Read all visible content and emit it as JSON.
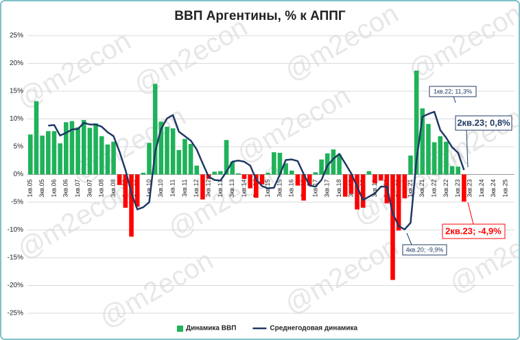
{
  "chart_data": {
    "type": "bar_line",
    "title": "ВВП Аргентины, % к АППГ",
    "watermark": "@m2econ",
    "categories": [
      "1кв.05",
      null,
      "3кв.05",
      null,
      "1кв.06",
      null,
      "3кв.06",
      null,
      "1кв.07",
      null,
      "3кв.07",
      null,
      "1кв.08",
      null,
      "3кв.08",
      null,
      "1кв.09",
      null,
      "3кв.09",
      null,
      "1кв.10",
      null,
      "3кв.10",
      null,
      "1кв.11",
      null,
      "3кв.11",
      null,
      "1кв.12",
      null,
      "3кв.12",
      null,
      "1кв.13",
      null,
      "3кв.13",
      null,
      "1кв.14",
      null,
      "3кв.14",
      null,
      "1кв.15",
      null,
      "3кв.15",
      null,
      "1кв.16",
      null,
      "3кв.16",
      null,
      "1кв.17",
      null,
      "3кв.17",
      null,
      "1кв.18",
      null,
      "3кв.18",
      null,
      "1кв.19",
      null,
      "3кв.19",
      null,
      "1кв.20",
      null,
      "3кв.20",
      null,
      "1кв.21",
      null,
      "3кв.21",
      null,
      "1кв.22",
      null,
      "3кв.22",
      null,
      "1кв.23",
      null,
      "3кв.23",
      null,
      "1кв.24",
      null,
      "3кв.24",
      null,
      "1кв.25",
      null
    ],
    "series": [
      {
        "name": "Динамика ВВП",
        "type": "bar",
        "color": "#1fb25a",
        "negative_color": "#ff0000",
        "values": [
          7.2,
          13.2,
          7.0,
          7.8,
          7.8,
          5.6,
          9.4,
          9.6,
          8.5,
          9.8,
          8.4,
          9.2,
          6.9,
          5.4,
          5.9,
          -1.9,
          -6.0,
          -11.2,
          -5.8,
          0.3,
          5.7,
          16.3,
          9.5,
          8.6,
          8.3,
          4.4,
          6.4,
          5.5,
          1.6,
          -4.5,
          -0.8,
          0.5,
          0.6,
          6.2,
          2.3,
          0.2,
          -0.8,
          -2.5,
          -4.2,
          -1.8,
          0.3,
          4.0,
          3.9,
          2.0,
          0.7,
          -2.0,
          -4.7,
          -2.0,
          0.4,
          2.7,
          3.8,
          4.5,
          3.6,
          -4.0,
          -3.5,
          -6.3,
          -6.0,
          0.6,
          -1.6,
          -1.1,
          -5.2,
          -19.0,
          -10.1,
          -4.3,
          3.4,
          18.7,
          11.9,
          9.1,
          5.8,
          6.9,
          5.9,
          1.5,
          1.4,
          -4.9,
          null,
          null,
          null,
          null,
          null,
          null,
          null,
          null
        ]
      },
      {
        "name": "Среднегодовая динамика",
        "type": "line",
        "color": "#1f3864",
        "values": [
          null,
          null,
          null,
          8.8,
          8.9,
          7.0,
          7.5,
          8.1,
          8.2,
          9.3,
          9.0,
          9.0,
          8.6,
          7.6,
          6.9,
          4.1,
          0.8,
          -3.3,
          -6.3,
          -5.9,
          -5.0,
          4.1,
          8.2,
          10.1,
          10.7,
          7.7,
          6.9,
          6.1,
          4.5,
          2.0,
          -0.4,
          -1.0,
          -1.1,
          0.5,
          2.3,
          2.5,
          2.3,
          1.6,
          -0.9,
          -2.1,
          -2.5,
          -2.4,
          0.0,
          2.6,
          2.7,
          2.4,
          0.1,
          -2.0,
          -2.2,
          -1.0,
          1.6,
          2.8,
          3.7,
          2.0,
          0.2,
          -2.2,
          -4.6,
          -4.0,
          -3.4,
          -2.2,
          -2.2,
          -7.0,
          -9.3,
          -9.9,
          -8.7,
          2.5,
          10.4,
          10.9,
          11.3,
          8.0,
          6.6,
          4.9,
          3.9,
          0.8,
          null,
          null,
          null,
          null,
          null,
          null,
          null,
          null
        ]
      }
    ],
    "ylim": [
      -25,
      25
    ],
    "yticks": [
      {
        "value": -25,
        "label": "-25%"
      },
      {
        "value": -20,
        "label": "-20%"
      },
      {
        "value": -15,
        "label": "-15%"
      },
      {
        "value": -10,
        "label": "-10%"
      },
      {
        "value": -5,
        "label": "-5%"
      },
      {
        "value": 0,
        "label": "0%"
      },
      {
        "value": 5,
        "label": "5%"
      },
      {
        "value": 10,
        "label": "10%"
      },
      {
        "value": 15,
        "label": "15%"
      },
      {
        "value": 20,
        "label": "20%"
      },
      {
        "value": 25,
        "label": "25%"
      }
    ],
    "grid": true,
    "legend": "bottom",
    "annotations": [
      "1кв.22; 11,3%",
      "2кв.23; 0,8%",
      "4кв.20; -9,9%",
      "2кв.23; -4,9%"
    ]
  }
}
